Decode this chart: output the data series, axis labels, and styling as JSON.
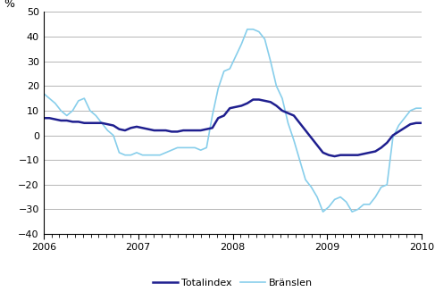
{
  "title": "",
  "ylabel": "%",
  "ylim": [
    -40,
    50
  ],
  "yticks": [
    -40,
    -30,
    -20,
    -10,
    0,
    10,
    20,
    30,
    40,
    50
  ],
  "xlim": [
    0,
    48
  ],
  "xtick_positions": [
    0,
    12,
    24,
    36,
    48
  ],
  "xtick_labels": [
    "2006",
    "2007",
    "2008",
    "2009",
    "2010"
  ],
  "totalindex_color": "#1f1f8f",
  "branslen_color": "#87ceeb",
  "legend_labels": [
    "Totalindex",
    "Bränslen"
  ],
  "totalindex": [
    7,
    7,
    6.5,
    6,
    6,
    5.5,
    5.5,
    5,
    5,
    5,
    5,
    4.5,
    4,
    2.5,
    2,
    3,
    3.5,
    3,
    2.5,
    2,
    2,
    2,
    1.5,
    1.5,
    2,
    2,
    2,
    2,
    2.5,
    3,
    7,
    8,
    11,
    11.5,
    12,
    13,
    14.5,
    14.5,
    14,
    13.5,
    12,
    10,
    9,
    8,
    5,
    2,
    -1,
    -4,
    -7,
    -8,
    -8.5,
    -8,
    -8,
    -8,
    -8,
    -7.5,
    -7,
    -6.5,
    -5,
    -3,
    0,
    1.5,
    3,
    4.5,
    5,
    5
  ],
  "branslen": [
    17,
    15,
    13,
    10,
    8,
    10,
    14,
    15,
    10,
    8,
    5,
    2,
    0,
    -7,
    -8,
    -8,
    -7,
    -8,
    -8,
    -8,
    -8,
    -7,
    -6,
    -5,
    -5,
    -5,
    -5,
    -6,
    -5,
    8,
    19,
    26,
    27,
    32,
    37,
    43,
    43,
    42,
    39,
    30,
    20,
    15,
    5,
    -2,
    -10,
    -18,
    -21,
    -25,
    -31,
    -29,
    -26,
    -25,
    -27,
    -31,
    -30,
    -28,
    -28,
    -25,
    -21,
    -20,
    -1,
    4,
    7,
    10,
    11,
    11
  ]
}
